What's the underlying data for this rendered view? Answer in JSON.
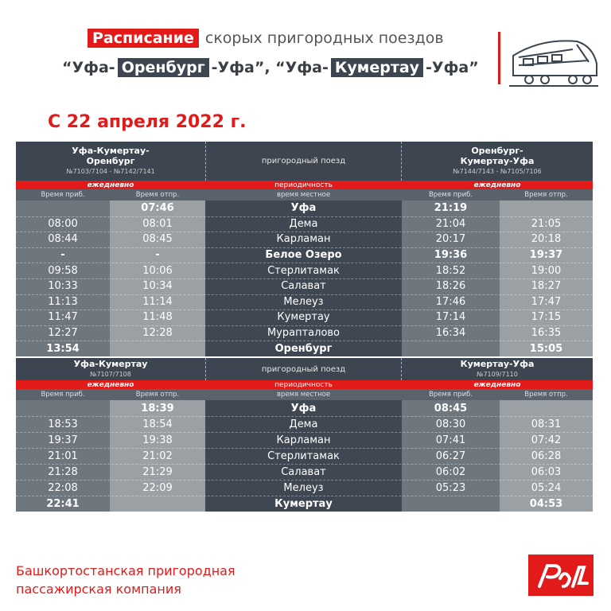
{
  "header": {
    "title_red": "Расписание",
    "title_rest": "скорых пригородных поездов",
    "subtitle": [
      "“Уфа-",
      "Оренбург",
      "-Уфа”, “Уфа-",
      "Кумертау",
      "-Уфа”"
    ],
    "date": "С 22 апреля 2022 г."
  },
  "tables": [
    {
      "left": {
        "name_lines": [
          "Уфа-Кумертау-",
          "Оренбург"
        ],
        "numbers": "№7103/7104 - №7142/7141",
        "periodicity": "ежедневно"
      },
      "middle": {
        "name": "пригородный поезд",
        "periodicity": "периодичность"
      },
      "right": {
        "name_lines": [
          "Оренбург-",
          "Кумертау-Уфа"
        ],
        "numbers": "№7144/7143 - №7105/7106",
        "periodicity": "ежедневно"
      },
      "subheader": [
        "Время приб.",
        "Время отпр.",
        "время местное",
        "Время приб.",
        "Время отпр."
      ],
      "rows": [
        [
          null,
          "07:46",
          "Уфа",
          "21:19",
          null
        ],
        [
          "08:00",
          "08:01",
          "Дема",
          "21:04",
          "21:05"
        ],
        [
          "08:44",
          "08:45",
          "Карламан",
          "20:17",
          "20:18"
        ],
        [
          "-",
          "-",
          "Белое Озеро",
          "19:36",
          "19:37"
        ],
        [
          "09:58",
          "10:06",
          "Стерлитамак",
          "18:52",
          "19:00"
        ],
        [
          "10:33",
          "10:34",
          "Салават",
          "18:26",
          "18:27"
        ],
        [
          "11:13",
          "11:14",
          "Мелеуз",
          "17:46",
          "17:47"
        ],
        [
          "11:47",
          "11:48",
          "Кумертау",
          "17:14",
          "17:15"
        ],
        [
          "12:27",
          "12:28",
          "Мурапталово",
          "16:34",
          "16:35"
        ],
        [
          "13:54",
          null,
          "Оренбург",
          null,
          "15:05"
        ]
      ]
    },
    {
      "left": {
        "name_lines": [
          "Уфа-Кумертау"
        ],
        "numbers": "№7107/7108",
        "periodicity": "ежедневно"
      },
      "middle": {
        "name": "пригородный поезд",
        "periodicity": "периодичность"
      },
      "right": {
        "name_lines": [
          "Кумертау-Уфа"
        ],
        "numbers": "№7109/7110",
        "periodicity": "ежедневно"
      },
      "subheader": [
        "Время приб.",
        "Время отпр.",
        "время местное",
        "Время приб.",
        "Время отпр."
      ],
      "rows": [
        [
          null,
          "18:39",
          "Уфа",
          "08:45",
          null
        ],
        [
          "18:53",
          "18:54",
          "Дема",
          "08:30",
          "08:31"
        ],
        [
          "19:37",
          "19:38",
          "Карламан",
          "07:41",
          "07:42"
        ],
        [
          "21:01",
          "21:02",
          "Стерлитамак",
          "06:27",
          "06:28"
        ],
        [
          "21:28",
          "21:29",
          "Салават",
          "06:02",
          "06:03"
        ],
        [
          "22:08",
          "22:09",
          "Мелеуз",
          "05:23",
          "05:24"
        ],
        [
          "22:41",
          null,
          "Кумертау",
          null,
          "04:53"
        ]
      ]
    }
  ],
  "footer": {
    "lines": [
      "Башкортостанская пригородная",
      "пассажирская компания"
    ]
  }
}
